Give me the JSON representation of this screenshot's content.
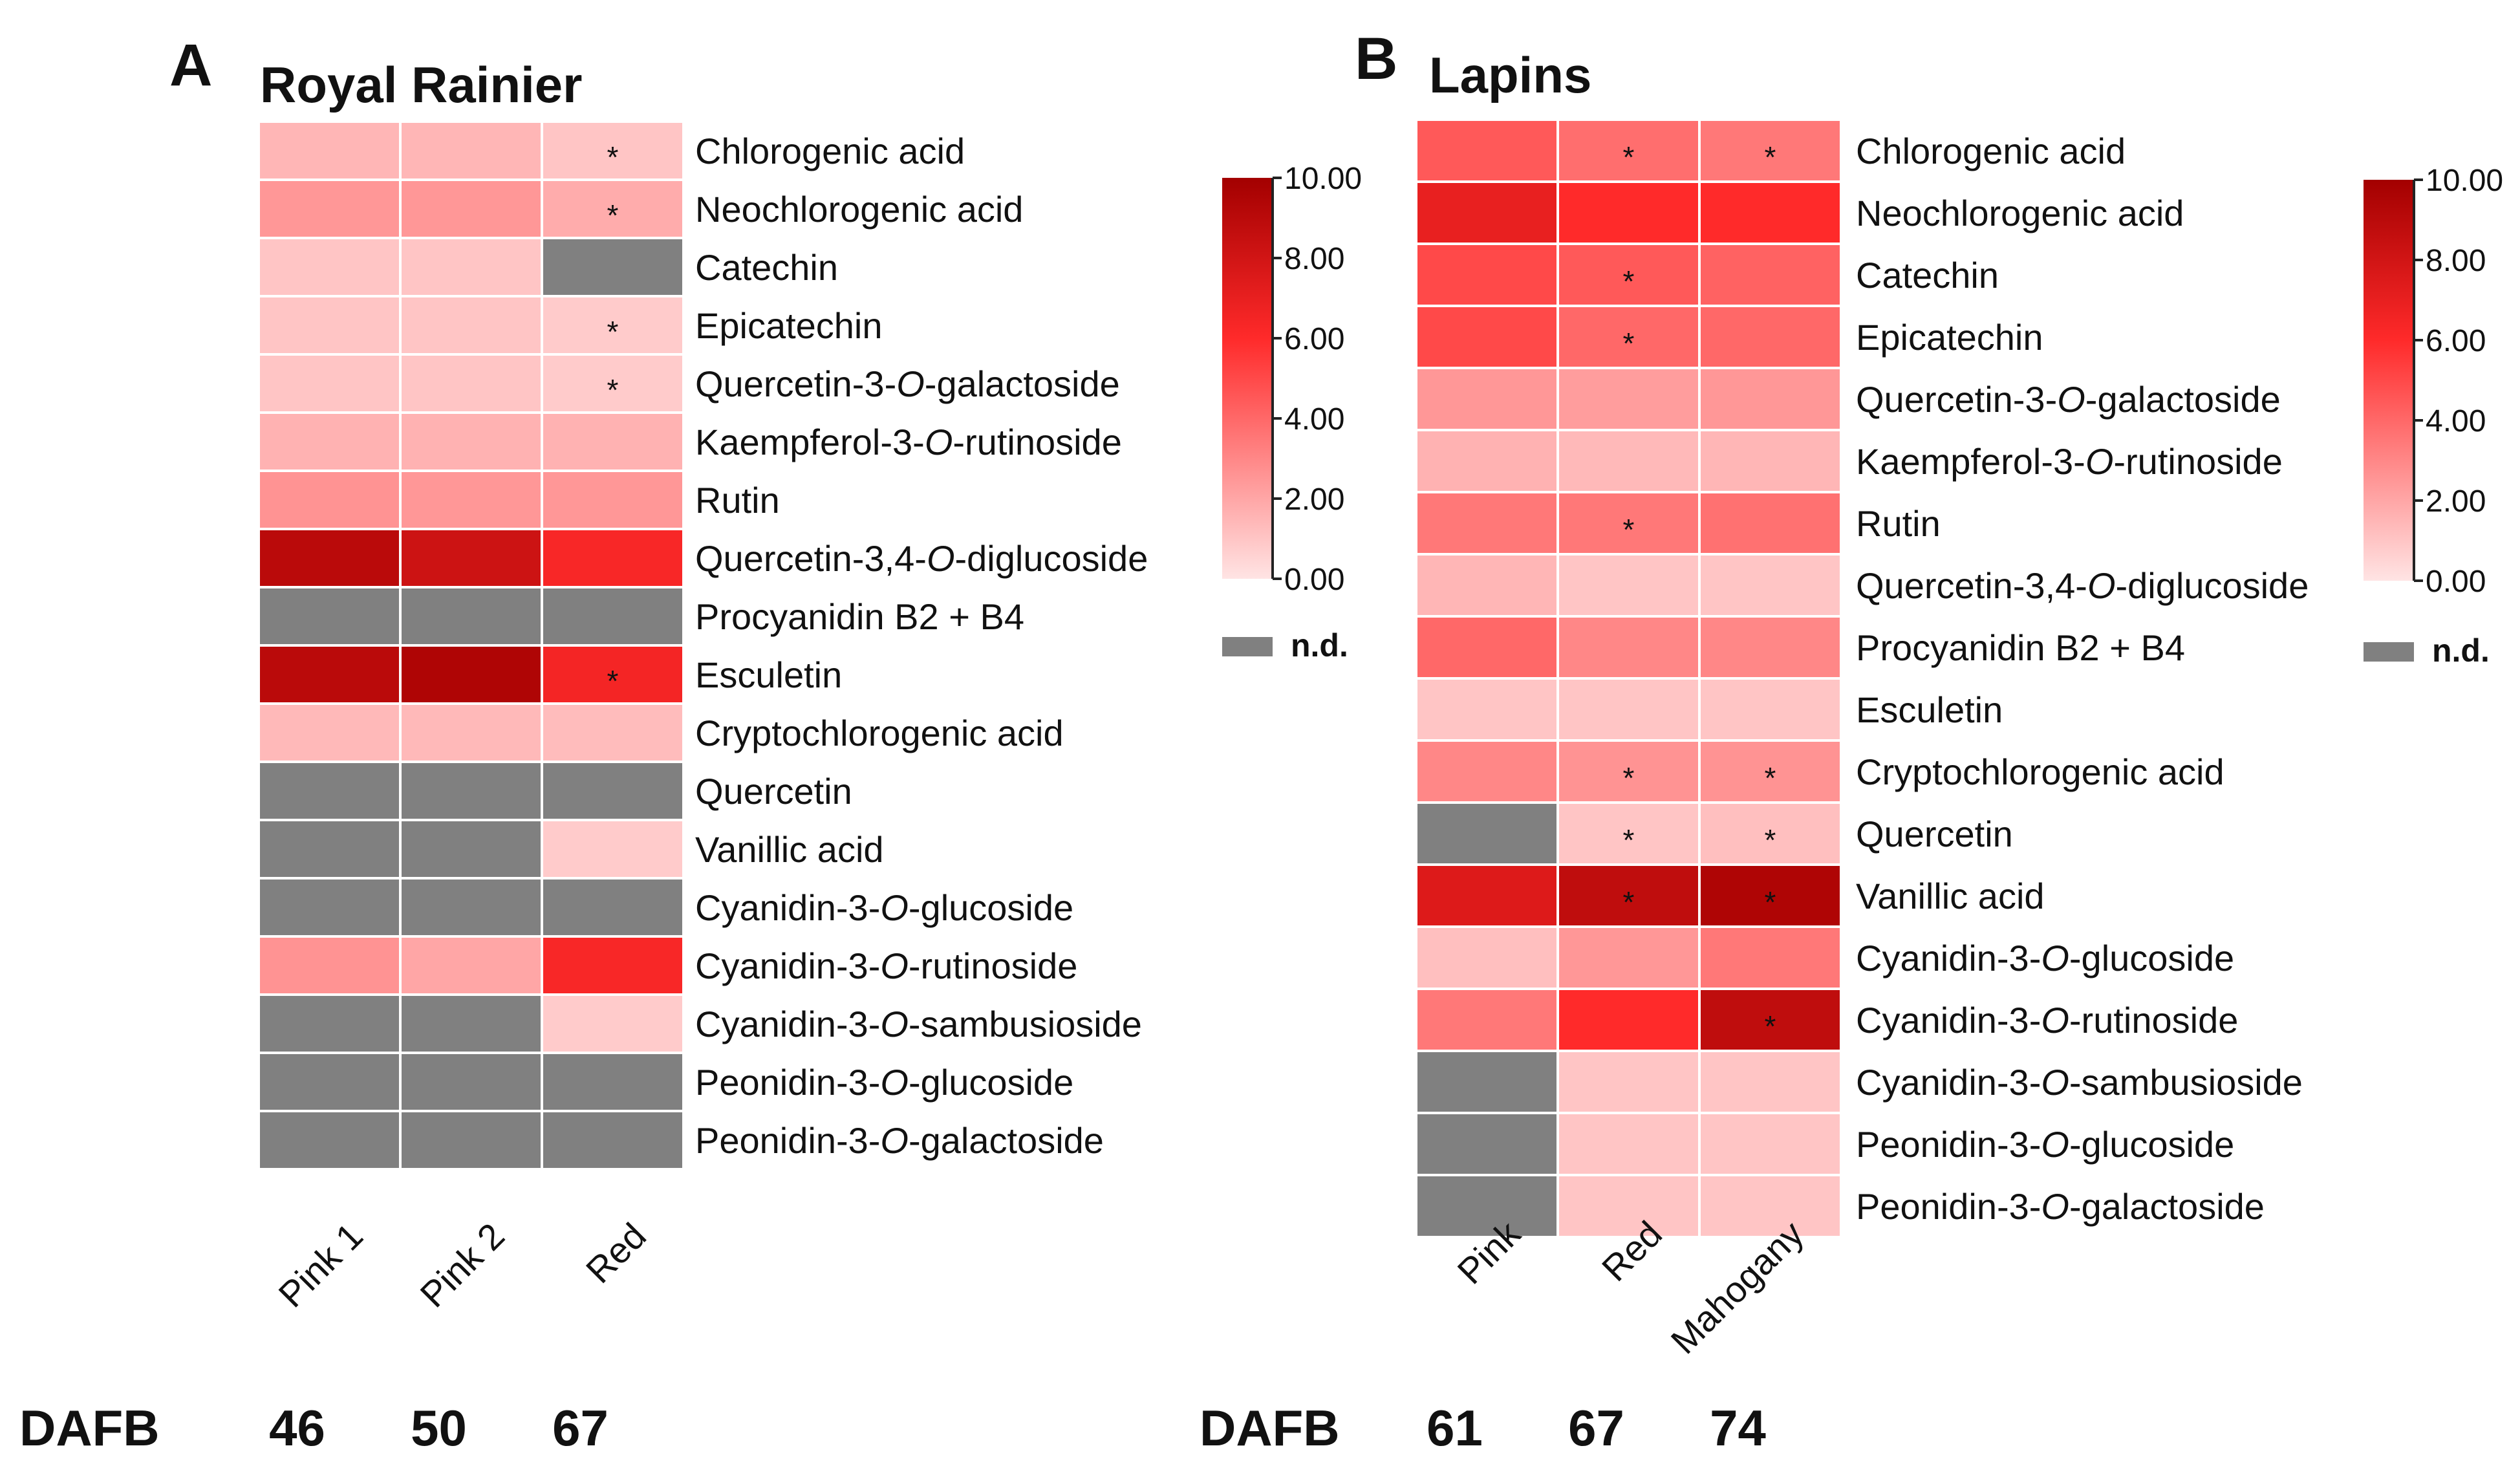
{
  "chart_data": [
    {
      "type": "heatmap",
      "panel_letter": "A",
      "title": "Royal Rainier",
      "columns": [
        "Pink 1",
        "Pink 2",
        "Red"
      ],
      "dafb_label": "DAFB",
      "dafb": [
        "46",
        "50",
        "67"
      ],
      "rows": [
        {
          "label": [
            "Chlorogenic acid"
          ],
          "values": [
            1.5,
            1.5,
            1.0
          ],
          "stars": [
            false,
            false,
            true
          ]
        },
        {
          "label": [
            "Neochlorogenic acid"
          ],
          "values": [
            2.5,
            2.5,
            1.8
          ],
          "stars": [
            false,
            false,
            true
          ]
        },
        {
          "label": [
            "Catechin"
          ],
          "values": [
            1.0,
            1.0,
            null
          ],
          "stars": [
            false,
            false,
            false
          ]
        },
        {
          "label": [
            "Epicatechin"
          ],
          "values": [
            1.0,
            1.0,
            0.8
          ],
          "stars": [
            false,
            false,
            true
          ]
        },
        {
          "label": [
            "Quercetin-3-",
            {
              "i": "O"
            },
            "-galactoside"
          ],
          "values": [
            1.0,
            1.0,
            0.8
          ],
          "stars": [
            false,
            false,
            true
          ]
        },
        {
          "label": [
            "Kaempferol-3-",
            {
              "i": "O"
            },
            "-rutinoside"
          ],
          "values": [
            1.6,
            1.6,
            1.6
          ],
          "stars": [
            false,
            false,
            false
          ]
        },
        {
          "label": [
            "Rutin"
          ],
          "values": [
            2.6,
            2.5,
            2.5
          ],
          "stars": [
            false,
            false,
            false
          ]
        },
        {
          "label": [
            "Quercetin-3,4-",
            {
              "i": "O"
            },
            "-diglucoside"
          ],
          "values": [
            9.0,
            8.2,
            6.3
          ],
          "stars": [
            false,
            false,
            false
          ]
        },
        {
          "label": [
            "Procyanidin B2 + B4"
          ],
          "values": [
            null,
            null,
            null
          ],
          "stars": [
            false,
            false,
            false
          ]
        },
        {
          "label": [
            "Esculetin"
          ],
          "values": [
            9.0,
            9.5,
            6.5
          ],
          "stars": [
            false,
            false,
            true
          ]
        },
        {
          "label": [
            "Cryptochlorogenic acid"
          ],
          "values": [
            1.4,
            1.4,
            1.3
          ],
          "stars": [
            false,
            false,
            false
          ]
        },
        {
          "label": [
            "Quercetin"
          ],
          "values": [
            null,
            null,
            null
          ],
          "stars": [
            false,
            false,
            false
          ]
        },
        {
          "label": [
            "Vanillic acid"
          ],
          "values": [
            null,
            null,
            0.8
          ],
          "stars": [
            false,
            false,
            false
          ]
        },
        {
          "label": [
            "Cyanidin-3-",
            {
              "i": "O"
            },
            "-glucoside"
          ],
          "values": [
            null,
            null,
            null
          ],
          "stars": [
            false,
            false,
            false
          ]
        },
        {
          "label": [
            "Cyanidin-3-",
            {
              "i": "O"
            },
            "-rutinoside"
          ],
          "values": [
            2.6,
            2.0,
            6.3
          ],
          "stars": [
            false,
            false,
            false
          ]
        },
        {
          "label": [
            "Cyanidin-3-",
            {
              "i": "O"
            },
            "-sambusioside"
          ],
          "values": [
            null,
            null,
            0.8
          ],
          "stars": [
            false,
            false,
            false
          ]
        },
        {
          "label": [
            "Peonidin-3-",
            {
              "i": "O"
            },
            "-glucoside"
          ],
          "values": [
            null,
            null,
            null
          ],
          "stars": [
            false,
            false,
            false
          ]
        },
        {
          "label": [
            "Peonidin-3-",
            {
              "i": "O"
            },
            "-galactoside"
          ],
          "values": [
            null,
            null,
            null
          ],
          "stars": [
            false,
            false,
            false
          ]
        }
      ],
      "colorbar": {
        "ticks": [
          "10.00",
          "8.00",
          "6.00",
          "4.00",
          "2.00",
          "0.00"
        ],
        "range": [
          0,
          10
        ],
        "nd_label": "n.d."
      },
      "colors": {
        "low": "#ffe4e4",
        "mid": "#ff2a2a",
        "high": "#a30000",
        "nd": "#808080"
      }
    },
    {
      "type": "heatmap",
      "panel_letter": "B",
      "title": "Lapins",
      "columns": [
        "Pink",
        "Red",
        "Mahogany"
      ],
      "dafb_label": "DAFB",
      "dafb": [
        "61",
        "67",
        "74"
      ],
      "rows": [
        {
          "label": [
            "Chlorogenic acid"
          ],
          "values": [
            4.5,
            3.8,
            3.5
          ],
          "stars": [
            false,
            true,
            true
          ]
        },
        {
          "label": [
            "Neochlorogenic acid"
          ],
          "values": [
            7.0,
            6.0,
            6.0
          ],
          "stars": [
            false,
            false,
            false
          ]
        },
        {
          "label": [
            "Catechin"
          ],
          "values": [
            5.0,
            4.5,
            4.2
          ],
          "stars": [
            false,
            true,
            false
          ]
        },
        {
          "label": [
            "Epicatechin"
          ],
          "values": [
            5.0,
            4.0,
            4.0
          ],
          "stars": [
            false,
            true,
            false
          ]
        },
        {
          "label": [
            "Quercetin-3-",
            {
              "i": "O"
            },
            "-galactoside"
          ],
          "values": [
            2.5,
            2.3,
            2.5
          ],
          "stars": [
            false,
            false,
            false
          ]
        },
        {
          "label": [
            "Kaempferol-3-",
            {
              "i": "O"
            },
            "-rutinoside"
          ],
          "values": [
            1.6,
            1.4,
            1.5
          ],
          "stars": [
            false,
            false,
            false
          ]
        },
        {
          "label": [
            "Rutin"
          ],
          "values": [
            3.5,
            3.5,
            3.7
          ],
          "stars": [
            false,
            true,
            false
          ]
        },
        {
          "label": [
            "Quercetin-3,4-",
            {
              "i": "O"
            },
            "-diglucoside"
          ],
          "values": [
            1.5,
            1.0,
            1.0
          ],
          "stars": [
            false,
            false,
            false
          ]
        },
        {
          "label": [
            "Procyanidin B2 + B4"
          ],
          "values": [
            4.0,
            3.0,
            3.0
          ],
          "stars": [
            false,
            false,
            false
          ]
        },
        {
          "label": [
            "Esculetin"
          ],
          "values": [
            1.0,
            1.0,
            1.0
          ],
          "stars": [
            false,
            false,
            false
          ]
        },
        {
          "label": [
            "Cryptochlorogenic acid"
          ],
          "values": [
            3.0,
            2.6,
            2.6
          ],
          "stars": [
            false,
            true,
            true
          ]
        },
        {
          "label": [
            "Quercetin"
          ],
          "values": [
            null,
            1.0,
            1.2
          ],
          "stars": [
            false,
            true,
            true
          ]
        },
        {
          "label": [
            "Vanillic acid"
          ],
          "values": [
            7.5,
            8.8,
            9.5
          ],
          "stars": [
            false,
            true,
            true
          ]
        },
        {
          "label": [
            "Cyanidin-3-",
            {
              "i": "O"
            },
            "-glucoside"
          ],
          "values": [
            1.2,
            2.5,
            3.5
          ],
          "stars": [
            false,
            false,
            false
          ]
        },
        {
          "label": [
            "Cyanidin-3-",
            {
              "i": "O"
            },
            "-rutinoside"
          ],
          "values": [
            3.5,
            6.0,
            8.8
          ],
          "stars": [
            false,
            false,
            true
          ]
        },
        {
          "label": [
            "Cyanidin-3-",
            {
              "i": "O"
            },
            "-sambusioside"
          ],
          "values": [
            null,
            1.0,
            1.0
          ],
          "stars": [
            false,
            false,
            false
          ]
        },
        {
          "label": [
            "Peonidin-3-",
            {
              "i": "O"
            },
            "-glucoside"
          ],
          "values": [
            null,
            1.0,
            1.0
          ],
          "stars": [
            false,
            false,
            false
          ]
        },
        {
          "label": [
            "Peonidin-3-",
            {
              "i": "O"
            },
            "-galactoside"
          ],
          "values": [
            null,
            1.0,
            1.0
          ],
          "stars": [
            false,
            false,
            false
          ]
        }
      ],
      "colorbar": {
        "ticks": [
          "10.00",
          "8.00",
          "6.00",
          "4.00",
          "2.00",
          "0.00"
        ],
        "range": [
          0,
          10
        ],
        "nd_label": "n.d."
      },
      "colors": {
        "low": "#ffe4e4",
        "mid": "#ff2a2a",
        "high": "#a30000",
        "nd": "#808080"
      }
    }
  ]
}
